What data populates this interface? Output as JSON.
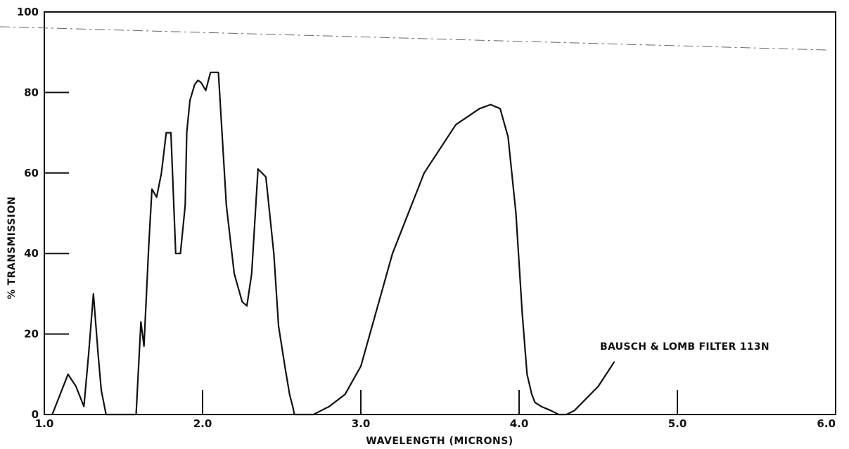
{
  "chart_data": {
    "type": "line",
    "xlabel": "WAVELENGTH (MICRONS)",
    "ylabel": "% TRANSMISSION",
    "xlim": [
      1.0,
      6.0
    ],
    "ylim": [
      0,
      100
    ],
    "grid": false,
    "x_tick_labels": [
      "1.0",
      "2.0",
      "3.0",
      "4.0",
      "5.0",
      "6.0"
    ],
    "y_tick_labels": [
      "0",
      "20",
      "40",
      "60",
      "80",
      "100"
    ],
    "annotation": "BAUSCH & LOMB FILTER 113N",
    "series": [
      {
        "name": "",
        "x": [
          1.05,
          1.1,
          1.15,
          1.2,
          1.25,
          1.28,
          1.31,
          1.34,
          1.36,
          1.39,
          1.44,
          1.48,
          1.58,
          1.61,
          1.63,
          1.66,
          1.68,
          1.71,
          1.74,
          1.77,
          1.8,
          1.83,
          1.86,
          1.89,
          1.9,
          1.92,
          1.95,
          1.97,
          1.99,
          2.02,
          2.05,
          2.1,
          2.15,
          2.2,
          2.25,
          2.28,
          2.31,
          2.35,
          2.4,
          2.45,
          2.48,
          2.52,
          2.55,
          2.57,
          2.58,
          2.6,
          2.65,
          2.7,
          2.75,
          2.8,
          2.9,
          3.0,
          3.2,
          3.4,
          3.6,
          3.75,
          3.82,
          3.88,
          3.93,
          3.98,
          4.02,
          4.05,
          4.08,
          4.1,
          4.14,
          4.2,
          4.25,
          4.3,
          4.35,
          4.4,
          4.5,
          4.6
        ],
        "y": [
          0,
          5,
          10,
          7,
          2,
          15,
          30,
          15,
          6,
          0,
          0,
          0,
          0,
          23,
          17,
          42,
          56,
          54,
          60,
          70,
          70,
          40,
          40,
          52,
          70,
          78,
          82,
          83,
          82.5,
          80.5,
          85,
          85,
          52,
          35,
          28,
          27,
          35,
          61,
          59,
          40,
          22,
          12,
          5,
          2,
          0,
          0,
          0,
          0,
          1,
          2,
          5,
          12,
          40,
          60,
          72,
          76,
          77,
          76,
          69,
          50,
          25,
          10,
          5,
          3,
          2,
          1,
          0,
          0,
          1,
          3,
          7,
          13
        ]
      }
    ]
  }
}
